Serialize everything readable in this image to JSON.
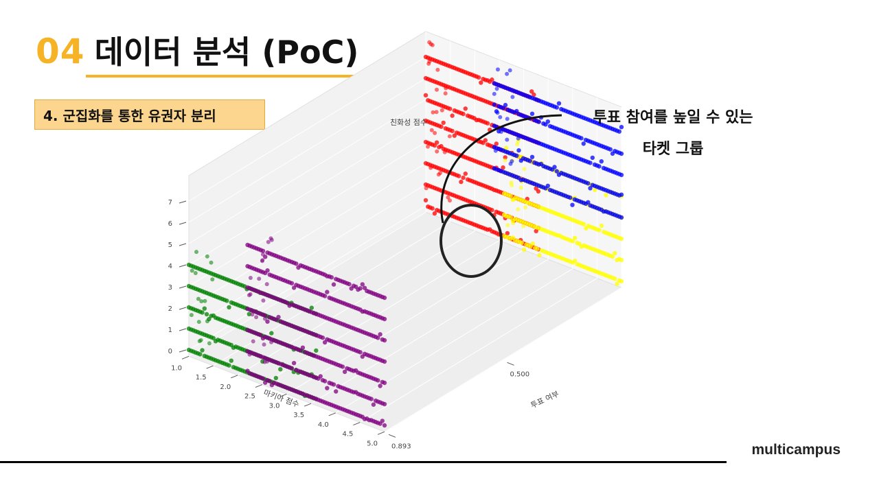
{
  "header": {
    "number": "04",
    "title": "데이터 분석 (PoC)"
  },
  "section": {
    "label": "4.  군집화를 통한 유권자 분리"
  },
  "annotation": {
    "line1": "투표 참여를 높일 수 있는",
    "line2": "타켓 그룹"
  },
  "brand": "multicampus",
  "chart_data": {
    "type": "scatter",
    "projection": "3d",
    "xlabel": "마키아 점수",
    "ylabel": "투표 여부",
    "zlabel": "친화성 점수",
    "x_ticks": [
      "1.0",
      "1.5",
      "2.0",
      "2.5",
      "3.0",
      "3.5",
      "4.0",
      "4.5",
      "5.0"
    ],
    "y_ticks": [
      "0.500",
      "0.893"
    ],
    "z_ticks": [
      "0",
      "1",
      "2",
      "3",
      "4",
      "5",
      "6",
      "7"
    ],
    "xlim": [
      1.0,
      5.0
    ],
    "ylim": [
      0,
      1
    ],
    "zlim": [
      0,
      7
    ],
    "grid": true,
    "series": [
      {
        "color": "#008000",
        "plane": "투표 여부 = 0",
        "x_range": [
          1.0,
          3.6
        ],
        "z_levels": [
          0,
          1,
          2,
          3,
          4
        ]
      },
      {
        "color": "#800080",
        "plane": "투표 여부 = 0",
        "x_range": [
          2.2,
          5.0
        ],
        "z_levels": [
          0,
          1,
          2,
          3,
          4,
          5,
          6
        ]
      },
      {
        "color": "#ff0000",
        "plane": "투표 여부 = 1",
        "x_range": [
          1.0,
          3.3
        ],
        "z_levels": [
          0,
          1,
          2,
          3,
          4,
          5,
          6,
          7
        ]
      },
      {
        "color": "#ffff00",
        "plane": "투표 여부 = 1",
        "x_range": [
          2.6,
          5.0
        ],
        "z_levels": [
          0,
          1,
          2,
          3,
          4
        ]
      },
      {
        "color": "#0000ff",
        "plane": "투표 여부 = 1",
        "x_range": [
          2.4,
          5.0
        ],
        "z_levels": [
          3,
          4,
          5,
          6,
          7
        ]
      }
    ],
    "highlight": {
      "target": "ff0000 cluster, low 마키아 점수",
      "shape": "ellipse"
    }
  }
}
